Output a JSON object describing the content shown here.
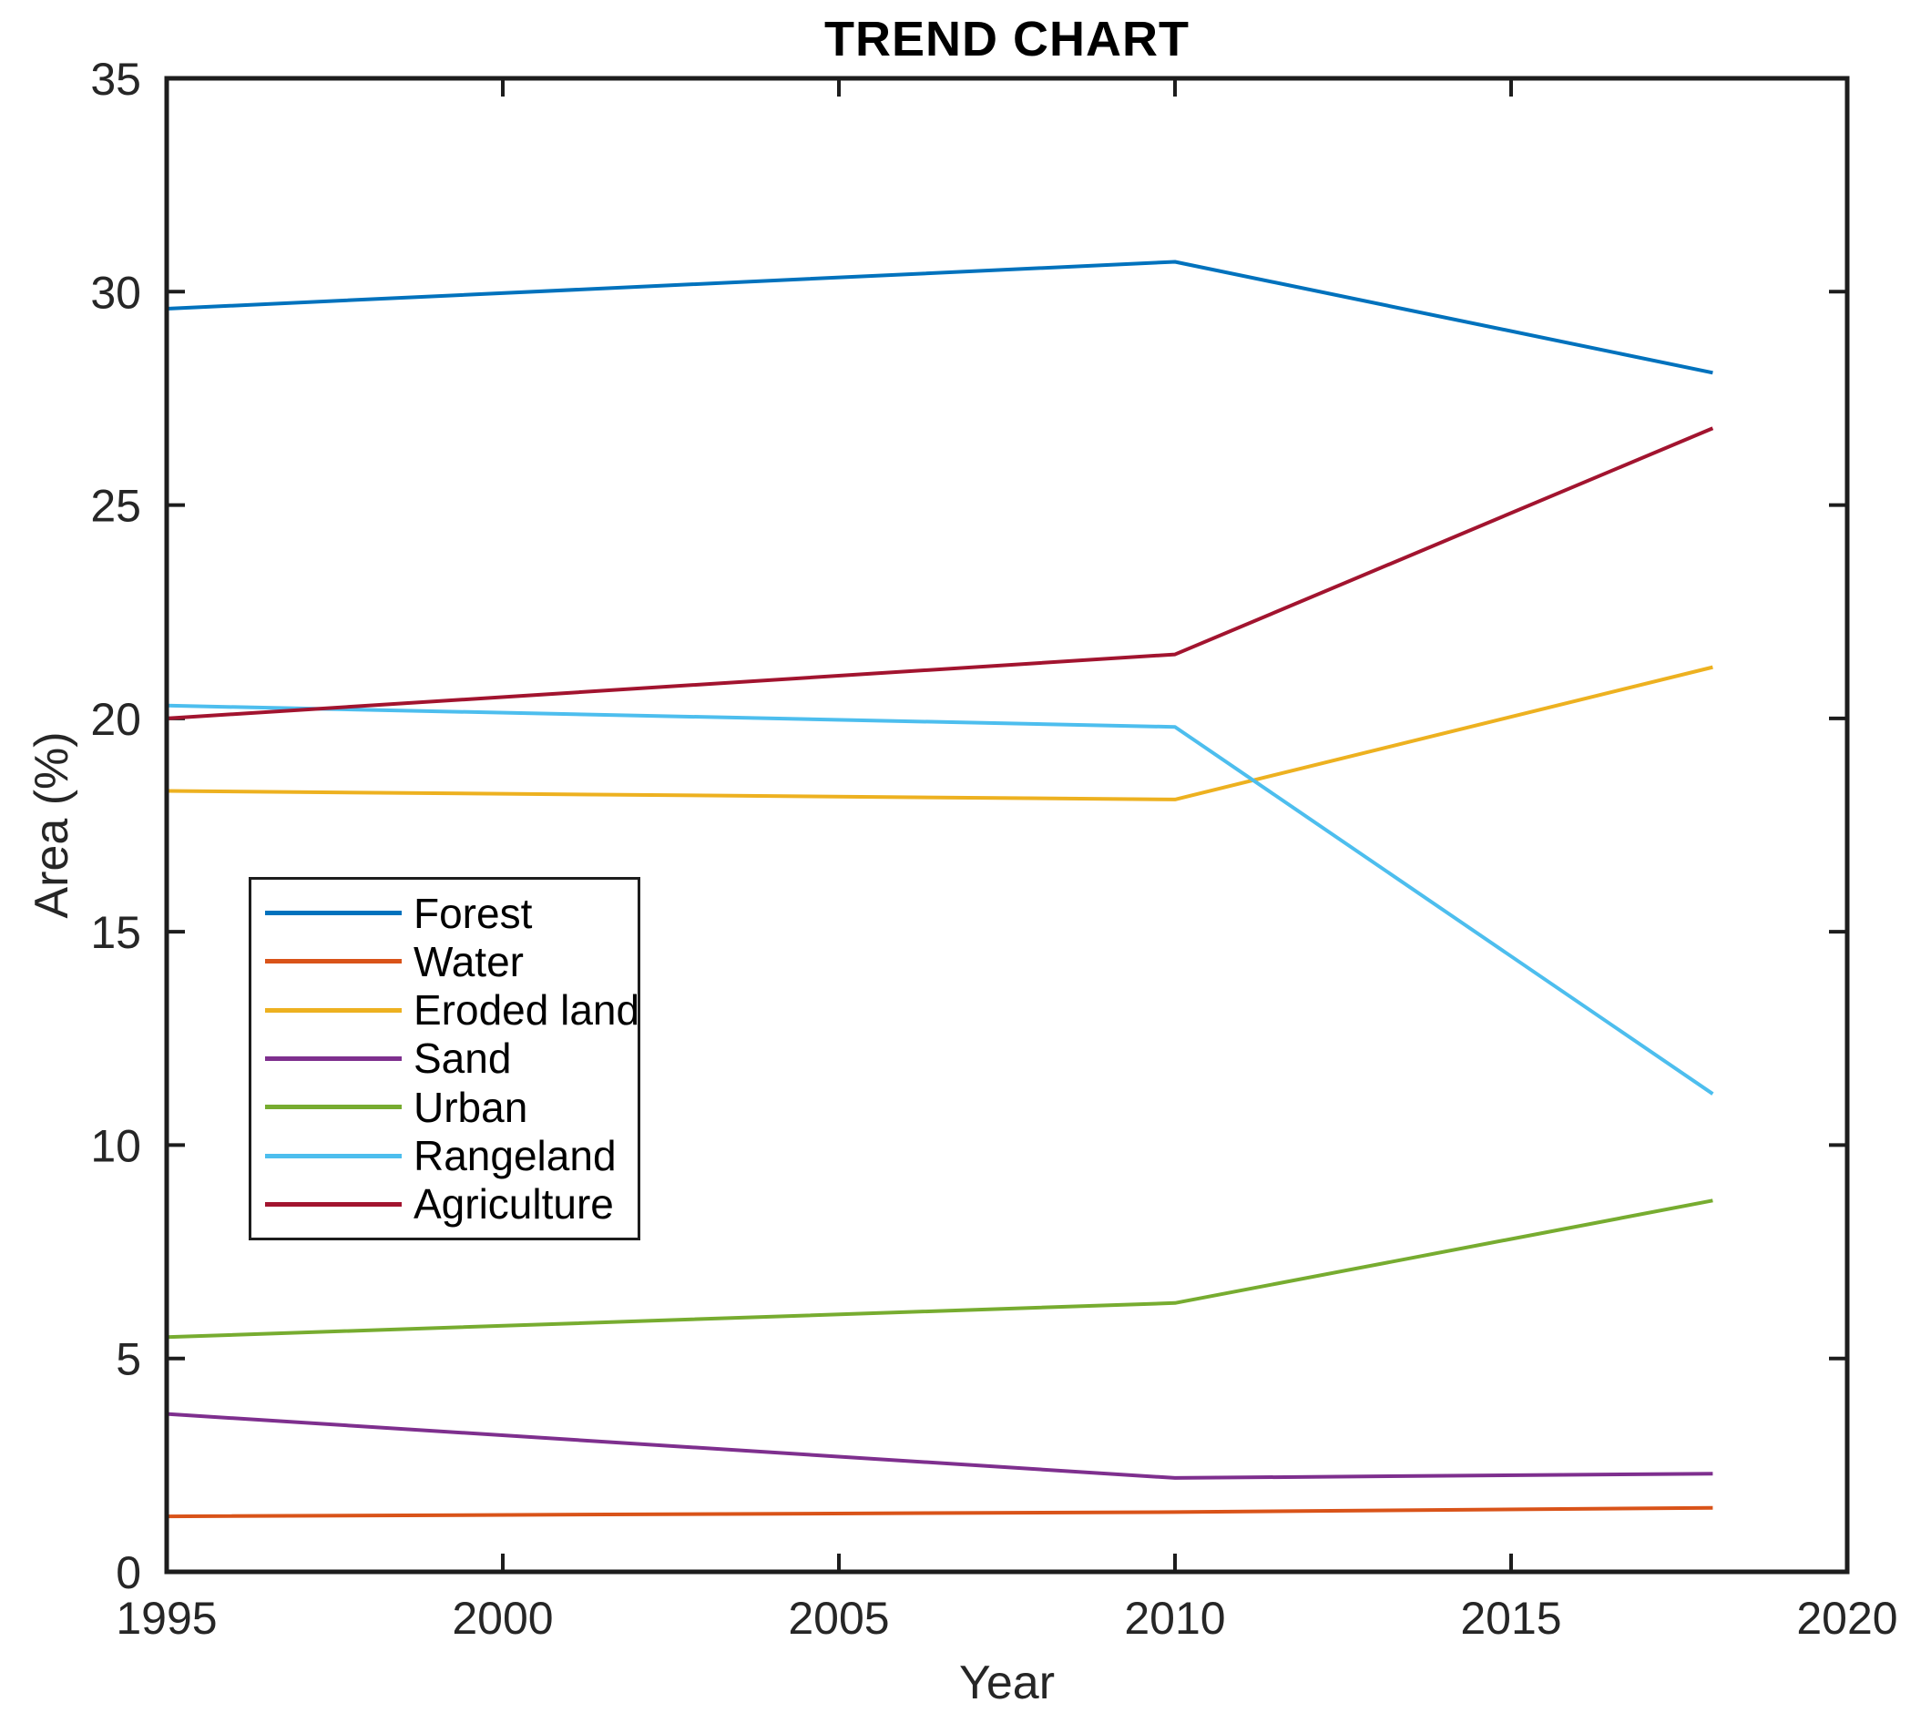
{
  "chart_data": {
    "type": "line",
    "title": "TREND CHART",
    "xlabel": "Year",
    "ylabel": "Area (%)",
    "xlim": [
      1995,
      2020
    ],
    "ylim": [
      0,
      35
    ],
    "x_ticks": [
      "1995",
      "2000",
      "2005",
      "2010",
      "2015",
      "2020"
    ],
    "y_ticks": [
      "0",
      "5",
      "10",
      "15",
      "20",
      "25",
      "30",
      "35"
    ],
    "grid": false,
    "legend_position": "left-middle",
    "axis_color": "#1d1d1d",
    "tick_label_color": "#262626",
    "x": [
      1995,
      2010,
      2018
    ],
    "series": [
      {
        "name": "Forest",
        "color": "#0072BD",
        "values": [
          29.6,
          30.7,
          28.1
        ]
      },
      {
        "name": "Water",
        "color": "#D95319",
        "values": [
          1.3,
          1.4,
          1.5
        ]
      },
      {
        "name": "Eroded land",
        "color": "#EDB120",
        "values": [
          18.3,
          18.1,
          21.2
        ]
      },
      {
        "name": "Sand",
        "color": "#7E2F8E",
        "values": [
          3.7,
          2.2,
          2.3
        ]
      },
      {
        "name": "Urban",
        "color": "#77AC30",
        "values": [
          5.5,
          6.3,
          8.7
        ]
      },
      {
        "name": "Rangeland",
        "color": "#4DBEEE",
        "values": [
          20.3,
          19.8,
          11.2
        ]
      },
      {
        "name": "Agriculture",
        "color": "#A2142F",
        "values": [
          20.0,
          21.5,
          26.8
        ]
      }
    ]
  }
}
